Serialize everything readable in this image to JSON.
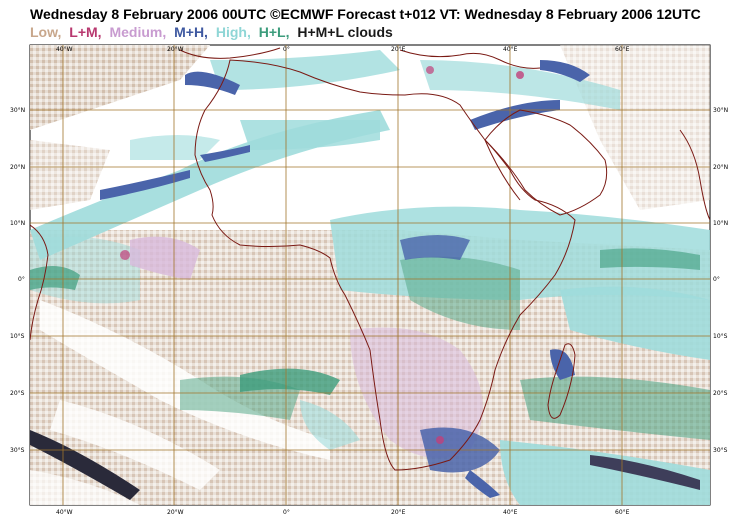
{
  "title": "Wednesday 8 February 2006 00UTC ©ECMWF Forecast t+012 VT: Wednesday 8 February 2006 12UTC",
  "legend": [
    {
      "label": "Low,",
      "color": "#c8a78c"
    },
    {
      "label": "L+M,",
      "color": "#b8386f"
    },
    {
      "label": "Medium,",
      "color": "#c89bd0"
    },
    {
      "label": "M+H,",
      "color": "#3e58a0"
    },
    {
      "label": "High,",
      "color": "#8fd6d6"
    },
    {
      "label": "H+L,",
      "color": "#3c9c7c"
    },
    {
      "label": "H+M+L clouds",
      "color": "#1a1a1a"
    }
  ],
  "lon_labels": [
    "40°W",
    "20°W",
    "0°",
    "20°E",
    "40°E",
    "60°E"
  ],
  "lat_labels": [
    "30°N",
    "20°N",
    "10°N",
    "0°",
    "10°S",
    "20°S",
    "30°S"
  ],
  "colors": {
    "grid": "#a0742a",
    "coast": "#7a1a14",
    "low": "#d9c7b8",
    "medium": "#d8b9dc",
    "mh": "#4a64aa",
    "high": "#9fdcdc",
    "hl": "#57a98a",
    "lm": "#c0407a"
  }
}
